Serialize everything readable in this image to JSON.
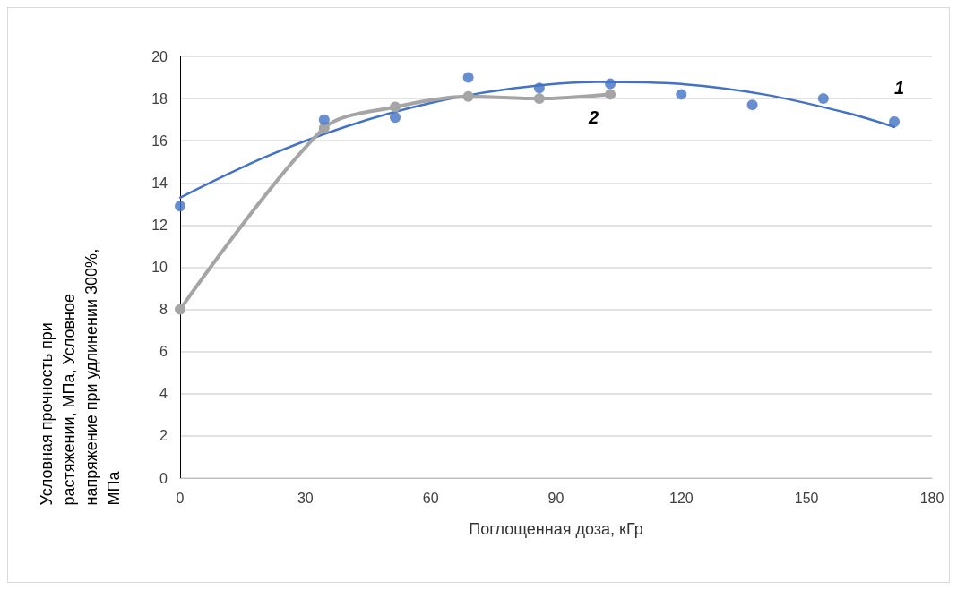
{
  "chart_data": {
    "type": "scatter",
    "xlabel": "Поглощенная доза, кГр",
    "ylabel": "Условная прочность при растяжении, МПа, Условное напряжение при удлинении 300%, МПа",
    "xlim": [
      0,
      180
    ],
    "xticks": [
      0,
      30,
      60,
      90,
      120,
      150,
      180
    ],
    "ylim": [
      0,
      20
    ],
    "yticks": [
      0,
      2,
      4,
      6,
      8,
      10,
      12,
      14,
      16,
      18,
      20
    ],
    "grid": "y",
    "legend": false,
    "series": [
      {
        "color": "#4472c4",
        "marker": "circle",
        "x": [
          0,
          34.5,
          51.5,
          69,
          86,
          103,
          120,
          137,
          154,
          171
        ],
        "values": [
          12.9,
          17.0,
          17.1,
          19.0,
          18.5,
          18.7,
          18.2,
          17.7,
          18.0,
          16.9
        ]
      },
      {
        "name": "1",
        "type": "line",
        "color": "#4472c4",
        "marker": "none",
        "x": [
          0,
          20,
          40,
          60,
          80,
          100,
          120,
          140,
          160,
          171
        ],
        "values": [
          13.3,
          15.2,
          16.69,
          17.79,
          18.49,
          18.79,
          18.69,
          18.19,
          17.3,
          16.65
        ]
      },
      {
        "name": "2",
        "type": "line",
        "color": "#a5a5a5",
        "marker": "circle",
        "x": [
          0,
          34.5,
          51.5,
          69,
          86,
          103
        ],
        "values": [
          8.0,
          16.6,
          17.6,
          18.1,
          18.0,
          18.2
        ]
      }
    ]
  }
}
